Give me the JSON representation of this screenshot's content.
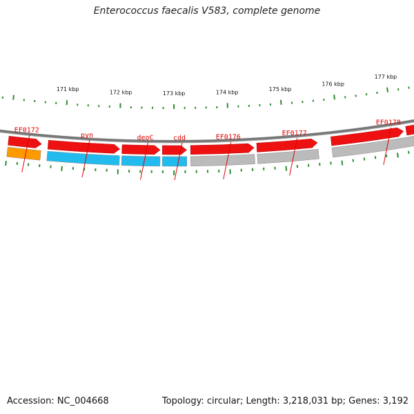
{
  "title": "Enterococcus faecalis V583, complete genome",
  "footer": {
    "accession": "Accession: NC_004668",
    "stats": "Topology: circular; Length: 3,218,031 bp; Genes: 3,192"
  },
  "colors": {
    "backbone": "#777777",
    "cds_forward": "#ee1111",
    "gene_orange": "#ff9900",
    "gene_cyan": "#22bbee",
    "gene_gray": "#bbbbbb",
    "label": "#e00000",
    "tick": "#2e8b2e"
  },
  "genes": [
    {
      "name": "EF0172",
      "start_kbp": 170.0,
      "end_kbp": 170.6,
      "type": "orange"
    },
    {
      "name": "pyn",
      "start_kbp": 170.72,
      "end_kbp": 172.02,
      "type": "cyan"
    },
    {
      "name": "deoC",
      "start_kbp": 172.06,
      "end_kbp": 172.75,
      "type": "cyan"
    },
    {
      "name": "cdd",
      "start_kbp": 172.79,
      "end_kbp": 173.23,
      "type": "cyan"
    },
    {
      "name": "EF0176",
      "start_kbp": 173.3,
      "end_kbp": 174.45,
      "type": "gray"
    },
    {
      "name": "EF0177",
      "start_kbp": 174.5,
      "end_kbp": 175.6,
      "type": "gray"
    },
    {
      "name": "EF0178",
      "start_kbp": 175.85,
      "end_kbp": 177.6,
      "type": "gray"
    }
  ],
  "cds": [
    {
      "start_kbp": 170.0,
      "end_kbp": 170.6
    },
    {
      "start_kbp": 170.72,
      "end_kbp": 172.02
    },
    {
      "start_kbp": 172.06,
      "end_kbp": 172.75
    },
    {
      "start_kbp": 172.79,
      "end_kbp": 173.23
    },
    {
      "start_kbp": 173.3,
      "end_kbp": 174.45
    },
    {
      "start_kbp": 174.5,
      "end_kbp": 175.6
    },
    {
      "start_kbp": 175.85,
      "end_kbp": 177.17
    },
    {
      "start_kbp": 177.22,
      "end_kbp": 177.6
    }
  ],
  "scale_labels": [
    "171 kbp",
    "172 kbp",
    "173 kbp",
    "174 kbp",
    "175 kbp",
    "176 kbp",
    "177 kbp"
  ]
}
